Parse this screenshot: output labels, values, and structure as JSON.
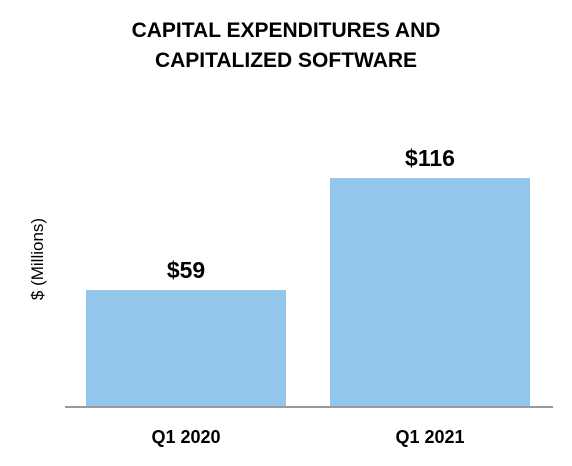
{
  "chart_data": {
    "type": "bar",
    "title_lines": [
      "CAPITAL EXPENDITURES AND",
      "CAPITALIZED SOFTWARE"
    ],
    "ylabel": "$ (Millions)",
    "xlabel": "",
    "categories": [
      "Q1 2020",
      "Q1 2021"
    ],
    "values": [
      59,
      116
    ],
    "data_labels": [
      "$59",
      "$116"
    ],
    "ylim": [
      0,
      116
    ],
    "grid": false,
    "legend": "none",
    "bar_color": "#92C6EA",
    "axis_color": "#999999"
  }
}
